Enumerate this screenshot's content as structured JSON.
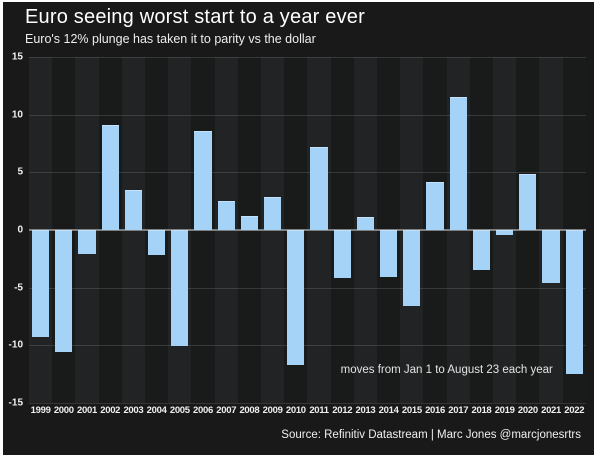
{
  "header": {
    "title": "Euro seeing worst start to a year ever",
    "subtitle": "Euro's 12% plunge has taken it to parity vs the dollar"
  },
  "chart_data": {
    "type": "bar",
    "title": "Euro seeing worst start to a year ever",
    "subtitle": "Euro's 12% plunge has taken it to parity vs the dollar",
    "categories": [
      "1999",
      "2000",
      "2001",
      "2002",
      "2003",
      "2004",
      "2005",
      "2006",
      "2007",
      "2008",
      "2009",
      "2010",
      "2011",
      "2012",
      "2013",
      "2014",
      "2015",
      "2016",
      "2017",
      "2018",
      "2019",
      "2020",
      "2021",
      "2022"
    ],
    "values": [
      -9.3,
      -10.6,
      -2.1,
      9.1,
      3.5,
      -2.2,
      -10.1,
      8.6,
      2.5,
      1.2,
      2.9,
      -11.7,
      7.2,
      -4.2,
      1.1,
      -4.1,
      -6.6,
      4.2,
      11.5,
      -3.5,
      -0.4,
      4.9,
      -4.6,
      -12.5
    ],
    "ylim": [
      -15,
      15
    ],
    "yticks": [
      15,
      10,
      5,
      0,
      -5,
      -10,
      -15
    ],
    "grid": "horizontal",
    "legend": "none",
    "annotation": "moves from Jan 1 to August 23 each year",
    "xlabel": "",
    "ylabel": ""
  },
  "colors": {
    "panel": "#191919",
    "bar": "#a4d3f7",
    "bar_edge": "rgba(255,255,255,0.35)",
    "stripe_even": "#222324",
    "stripe_odd": "#191a1a",
    "zero_line": "#7f7f7f",
    "gridline": "rgba(255,255,255,0.13)"
  },
  "footer": {
    "source": "Source: Refinitiv Datastream | Marc Jones @marcjonesrtrs"
  }
}
